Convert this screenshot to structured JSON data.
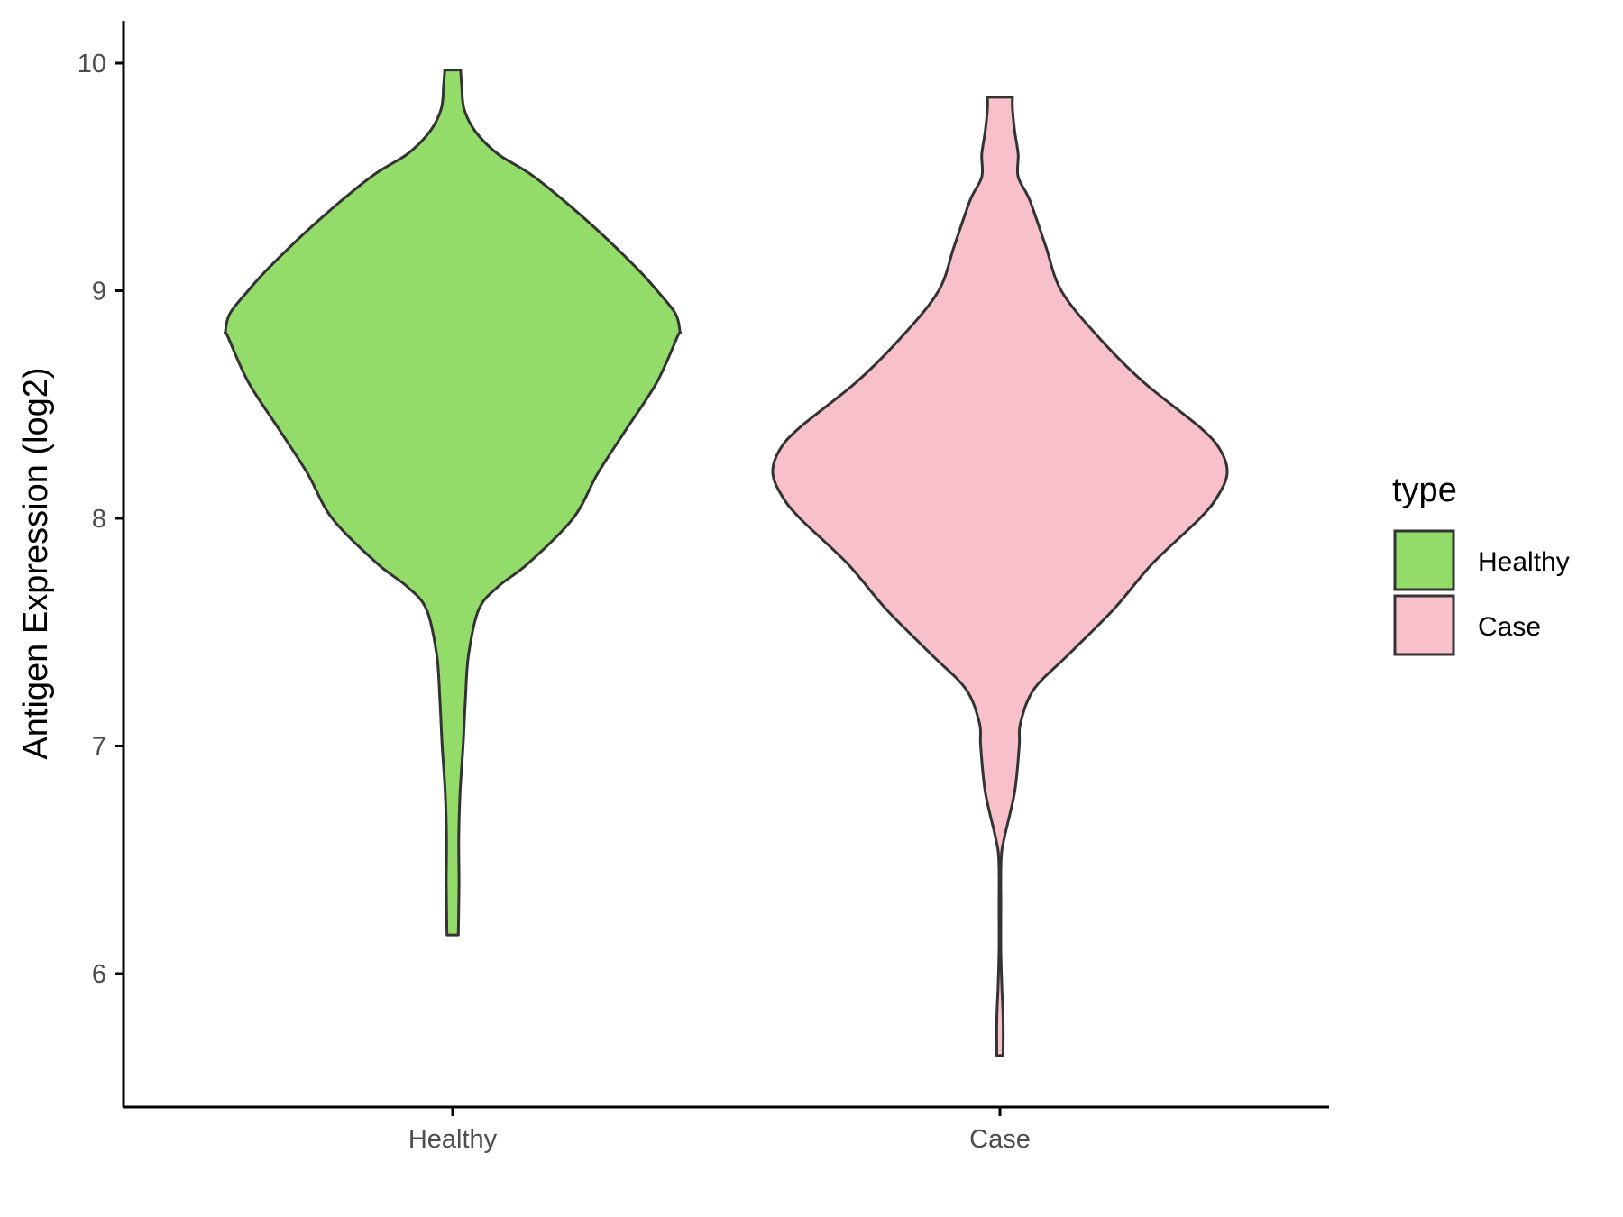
{
  "chart_data": {
    "type": "violin",
    "ylabel": "Antigen Expression (log2)",
    "xlabel": "",
    "ylim": [
      5.45,
      10.2
    ],
    "yticks": [
      6,
      7,
      8,
      9,
      10
    ],
    "categories": [
      "Healthy",
      "Case"
    ],
    "legend": {
      "title": "type",
      "placement": "right",
      "entries": [
        "Healthy",
        "Case"
      ]
    },
    "grid": false,
    "series": [
      {
        "name": "Healthy",
        "color": "#93dc6a",
        "min": 6.17,
        "max": 9.97,
        "density": [
          [
            6.17,
            0.025
          ],
          [
            6.4,
            0.028
          ],
          [
            6.6,
            0.027
          ],
          [
            6.8,
            0.033
          ],
          [
            7.0,
            0.046
          ],
          [
            7.2,
            0.056
          ],
          [
            7.4,
            0.07
          ],
          [
            7.6,
            0.115
          ],
          [
            7.7,
            0.2
          ],
          [
            7.8,
            0.33
          ],
          [
            8.0,
            0.53
          ],
          [
            8.2,
            0.64
          ],
          [
            8.4,
            0.77
          ],
          [
            8.6,
            0.9
          ],
          [
            8.8,
            0.99
          ],
          [
            8.82,
            1.0
          ],
          [
            8.9,
            0.98
          ],
          [
            9.0,
            0.9
          ],
          [
            9.1,
            0.81
          ],
          [
            9.3,
            0.6
          ],
          [
            9.5,
            0.36
          ],
          [
            9.6,
            0.2
          ],
          [
            9.7,
            0.1
          ],
          [
            9.8,
            0.05
          ],
          [
            9.9,
            0.04
          ],
          [
            9.97,
            0.035
          ]
        ]
      },
      {
        "name": "Case",
        "color": "#f7c0cb",
        "min": 5.64,
        "max": 9.85,
        "density": [
          [
            5.64,
            0.014
          ],
          [
            5.8,
            0.014
          ],
          [
            5.95,
            0.008
          ],
          [
            6.1,
            0.004
          ],
          [
            6.3,
            0.004
          ],
          [
            6.5,
            0.005
          ],
          [
            6.6,
            0.02
          ],
          [
            6.8,
            0.065
          ],
          [
            7.0,
            0.085
          ],
          [
            7.1,
            0.09
          ],
          [
            7.25,
            0.15
          ],
          [
            7.4,
            0.3
          ],
          [
            7.6,
            0.5
          ],
          [
            7.8,
            0.67
          ],
          [
            8.0,
            0.88
          ],
          [
            8.1,
            0.96
          ],
          [
            8.2,
            1.0
          ],
          [
            8.3,
            0.97
          ],
          [
            8.4,
            0.88
          ],
          [
            8.6,
            0.63
          ],
          [
            8.8,
            0.43
          ],
          [
            9.0,
            0.27
          ],
          [
            9.2,
            0.2
          ],
          [
            9.4,
            0.13
          ],
          [
            9.5,
            0.08
          ],
          [
            9.6,
            0.08
          ],
          [
            9.7,
            0.065
          ],
          [
            9.8,
            0.055
          ],
          [
            9.85,
            0.055
          ]
        ]
      }
    ]
  }
}
